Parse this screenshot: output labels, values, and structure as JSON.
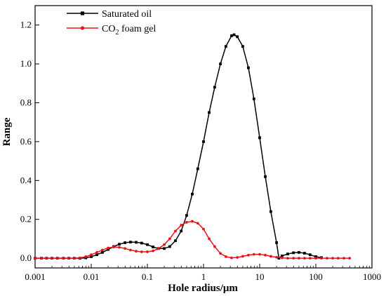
{
  "chart_data": {
    "type": "line",
    "title": "",
    "xlabel": "Hole radius/μm",
    "ylabel": "Range",
    "xscale": "log",
    "xlim": [
      0.001,
      1000
    ],
    "ylim": [
      -0.05,
      1.3
    ],
    "x_ticks": [
      0.001,
      0.01,
      0.1,
      1,
      10,
      100,
      1000
    ],
    "x_tick_labels": [
      "0.001",
      "0.01",
      "0.1",
      "1",
      "10",
      "100",
      "1000"
    ],
    "y_ticks": [
      0.0,
      0.2,
      0.4,
      0.6,
      0.8,
      1.0,
      1.2
    ],
    "y_tick_labels": [
      "0.0",
      "0.2",
      "0.4",
      "0.6",
      "0.8",
      "1.0",
      "1.2"
    ],
    "legend_position": "top-left",
    "grid": false,
    "series": [
      {
        "name": "Saturated oil",
        "legend_parts": [
          "Saturated oil",
          "",
          ""
        ],
        "color": "#000000",
        "marker": "square",
        "points": [
          [
            0.001,
            0.0
          ],
          [
            0.0013,
            0.0
          ],
          [
            0.0016,
            0.0
          ],
          [
            0.002,
            0.0
          ],
          [
            0.0025,
            0.0
          ],
          [
            0.0032,
            0.0
          ],
          [
            0.004,
            0.0
          ],
          [
            0.005,
            0.0
          ],
          [
            0.0063,
            0.0
          ],
          [
            0.008,
            0.002
          ],
          [
            0.01,
            0.008
          ],
          [
            0.0126,
            0.018
          ],
          [
            0.0158,
            0.03
          ],
          [
            0.02,
            0.045
          ],
          [
            0.025,
            0.06
          ],
          [
            0.0316,
            0.072
          ],
          [
            0.04,
            0.08
          ],
          [
            0.05,
            0.083
          ],
          [
            0.063,
            0.082
          ],
          [
            0.079,
            0.078
          ],
          [
            0.1,
            0.07
          ],
          [
            0.126,
            0.058
          ],
          [
            0.158,
            0.05
          ],
          [
            0.2,
            0.05
          ],
          [
            0.25,
            0.06
          ],
          [
            0.316,
            0.09
          ],
          [
            0.4,
            0.14
          ],
          [
            0.5,
            0.22
          ],
          [
            0.63,
            0.33
          ],
          [
            0.79,
            0.46
          ],
          [
            1.0,
            0.6
          ],
          [
            1.26,
            0.75
          ],
          [
            1.58,
            0.88
          ],
          [
            2.0,
            1.0
          ],
          [
            2.5,
            1.09
          ],
          [
            3.16,
            1.145
          ],
          [
            3.5,
            1.15
          ],
          [
            4.0,
            1.14
          ],
          [
            5.0,
            1.09
          ],
          [
            6.3,
            0.98
          ],
          [
            7.9,
            0.82
          ],
          [
            10.0,
            0.62
          ],
          [
            12.6,
            0.42
          ],
          [
            15.8,
            0.24
          ],
          [
            20.0,
            0.08
          ],
          [
            22.0,
            0.0
          ],
          [
            25.0,
            0.012
          ],
          [
            31.6,
            0.022
          ],
          [
            40.0,
            0.028
          ],
          [
            50.0,
            0.03
          ],
          [
            63.0,
            0.026
          ],
          [
            79.0,
            0.018
          ],
          [
            100.0,
            0.008
          ],
          [
            126.0,
            0.003
          ]
        ]
      },
      {
        "name": "CO2 foam gel",
        "legend_parts": [
          "CO",
          "2",
          " foam gel"
        ],
        "color": "#e8141b",
        "marker": "circle",
        "points": [
          [
            0.001,
            0.0
          ],
          [
            0.0013,
            0.0
          ],
          [
            0.0016,
            0.0
          ],
          [
            0.002,
            0.0
          ],
          [
            0.0025,
            0.0
          ],
          [
            0.0032,
            0.0
          ],
          [
            0.004,
            0.0
          ],
          [
            0.005,
            0.0
          ],
          [
            0.0063,
            0.002
          ],
          [
            0.008,
            0.008
          ],
          [
            0.01,
            0.018
          ],
          [
            0.0126,
            0.03
          ],
          [
            0.0158,
            0.042
          ],
          [
            0.02,
            0.053
          ],
          [
            0.025,
            0.058
          ],
          [
            0.0316,
            0.056
          ],
          [
            0.04,
            0.05
          ],
          [
            0.05,
            0.042
          ],
          [
            0.063,
            0.036
          ],
          [
            0.079,
            0.033
          ],
          [
            0.1,
            0.033
          ],
          [
            0.126,
            0.038
          ],
          [
            0.158,
            0.05
          ],
          [
            0.2,
            0.07
          ],
          [
            0.25,
            0.1
          ],
          [
            0.316,
            0.14
          ],
          [
            0.4,
            0.17
          ],
          [
            0.5,
            0.185
          ],
          [
            0.63,
            0.19
          ],
          [
            0.79,
            0.18
          ],
          [
            1.0,
            0.15
          ],
          [
            1.26,
            0.1
          ],
          [
            1.58,
            0.06
          ],
          [
            2.0,
            0.025
          ],
          [
            2.5,
            0.008
          ],
          [
            3.16,
            0.002
          ],
          [
            4.0,
            0.004
          ],
          [
            5.0,
            0.01
          ],
          [
            6.3,
            0.016
          ],
          [
            7.9,
            0.02
          ],
          [
            10.0,
            0.02
          ],
          [
            12.6,
            0.016
          ],
          [
            15.8,
            0.01
          ],
          [
            20.0,
            0.005
          ],
          [
            25.0,
            0.002
          ],
          [
            31.6,
            0.0
          ],
          [
            40.0,
            0.0
          ],
          [
            50.0,
            0.0
          ],
          [
            63.0,
            0.0
          ],
          [
            79.0,
            0.0
          ],
          [
            100.0,
            0.0
          ],
          [
            126.0,
            0.0
          ],
          [
            158.0,
            0.0
          ],
          [
            200.0,
            0.0
          ],
          [
            250.0,
            0.0
          ],
          [
            316.0,
            0.0
          ],
          [
            400.0,
            0.0
          ]
        ]
      }
    ]
  }
}
